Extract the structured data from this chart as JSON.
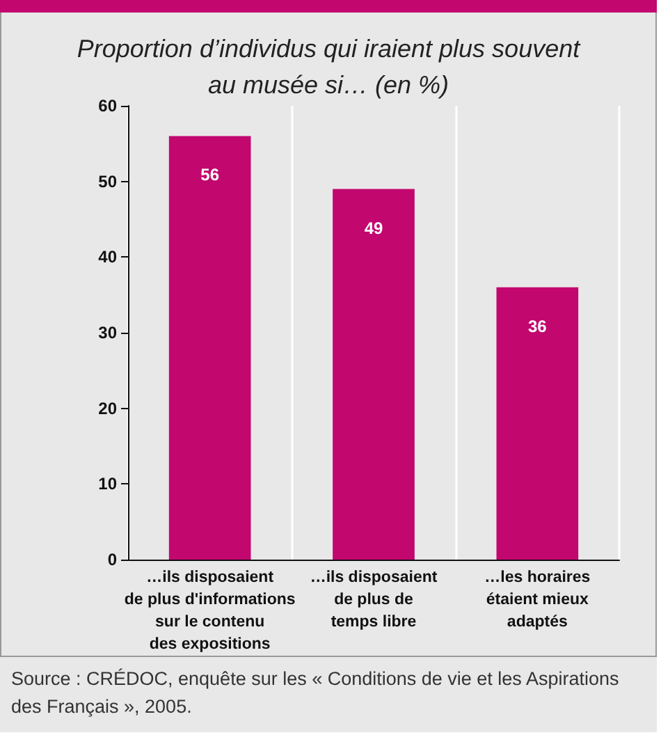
{
  "chart_data": {
    "type": "bar",
    "title": "Proportion d’individus qui iraient plus souvent\nau musée si… (en %)",
    "categories": [
      "…ils disposaient\nde plus d'informations\nsur le contenu\ndes expositions",
      "…ils disposaient\nde plus de\ntemps libre",
      "…les horaires\nétaient mieux\nadaptés"
    ],
    "values": [
      56,
      49,
      36
    ],
    "color": "#c2076f",
    "ylim": [
      0,
      60
    ],
    "yticks": [
      0,
      10,
      20,
      30,
      40,
      50,
      60
    ],
    "grid": "x",
    "data_labels": true,
    "annotations": [
      "Source : CRÉDOC, enquête sur les « Conditions de vie et les Aspirations des Français », 2005."
    ]
  }
}
